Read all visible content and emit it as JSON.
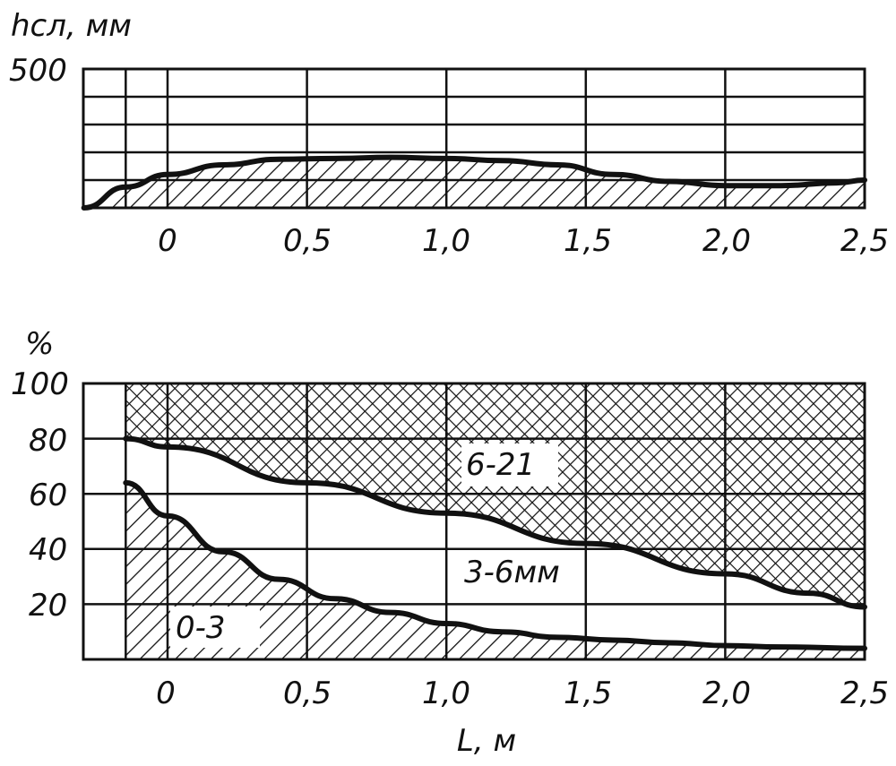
{
  "chart_data": [
    {
      "type": "area",
      "ylabel": "hсл, мм",
      "y_tick_labels": [
        "500"
      ],
      "ylim": [
        0,
        500
      ],
      "xlim": [
        -0.3,
        2.5
      ],
      "x_ticks": [
        0,
        0.5,
        1.0,
        1.5,
        2.0,
        2.5
      ],
      "x_tick_labels": [
        "0",
        "0,5",
        "1,0",
        "1,5",
        "2,0",
        "2,5"
      ],
      "grid": true,
      "series": [
        {
          "x": [
            -0.3,
            -0.15,
            0.0,
            0.2,
            0.4,
            0.6,
            0.8,
            1.0,
            1.2,
            1.4,
            1.6,
            1.8,
            2.0,
            2.2,
            2.4,
            2.5
          ],
          "values": [
            0,
            75,
            120,
            155,
            175,
            178,
            182,
            178,
            170,
            155,
            120,
            95,
            80,
            80,
            90,
            100
          ]
        }
      ]
    },
    {
      "type": "area",
      "ylabel": "%",
      "xlabel": "L, м",
      "ylim": [
        0,
        100
      ],
      "y_ticks": [
        20,
        40,
        60,
        80,
        100
      ],
      "y_tick_labels": [
        "20",
        "40",
        "60",
        "80",
        "100"
      ],
      "xlim": [
        -0.3,
        2.5
      ],
      "x_ticks": [
        0,
        0.5,
        1.0,
        1.5,
        2.0,
        2.5
      ],
      "x_tick_labels": [
        "0",
        "0,5",
        "1,0",
        "1,5",
        "2,0",
        "2,5"
      ],
      "grid": true,
      "series": [
        {
          "name": "0-3",
          "x": [
            -0.15,
            0.0,
            0.2,
            0.4,
            0.6,
            0.8,
            1.0,
            1.2,
            1.4,
            1.6,
            1.8,
            2.0,
            2.2,
            2.5
          ],
          "values": [
            64,
            52,
            39,
            29,
            22,
            17,
            13,
            10,
            8,
            7,
            6,
            5,
            4.5,
            4
          ]
        },
        {
          "name": "3-6мм",
          "x": [
            -0.15,
            0.0,
            0.5,
            1.0,
            1.5,
            2.0,
            2.3,
            2.5
          ],
          "values": [
            80,
            77,
            64,
            53,
            42,
            31,
            24,
            19
          ]
        },
        {
          "name": "6-21",
          "x": [
            -0.15,
            2.5
          ],
          "values": [
            100,
            100
          ]
        }
      ]
    }
  ]
}
